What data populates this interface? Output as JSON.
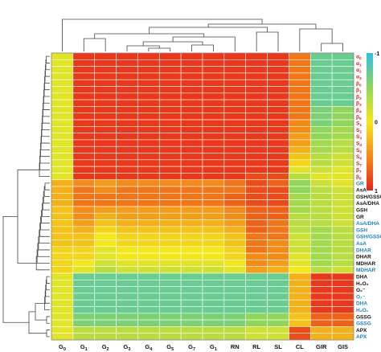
{
  "chart_data": {
    "type": "heatmap",
    "title": "",
    "xlabel": "",
    "ylabel": "",
    "columns": [
      {
        "label": "G",
        "sub": "0"
      },
      {
        "label": "G",
        "sub": "1"
      },
      {
        "label": "G",
        "sub": "2"
      },
      {
        "label": "G",
        "sub": "3"
      },
      {
        "label": "G",
        "sub": "4"
      },
      {
        "label": "G",
        "sub": "5"
      },
      {
        "label": "G",
        "sub": "7"
      },
      {
        "label": "G",
        "sub": "1"
      },
      {
        "label": "RN",
        "sub": ""
      },
      {
        "label": "RL",
        "sub": ""
      },
      {
        "label": "SL",
        "sub": ""
      },
      {
        "label": "CL",
        "sub": ""
      },
      {
        "label": "GIR",
        "sub": ""
      },
      {
        "label": "GIS",
        "sub": ""
      }
    ],
    "rows": [
      {
        "label": "α",
        "sub": "0",
        "color": "#d42020"
      },
      {
        "label": "α",
        "sub": "1",
        "color": "#d42020"
      },
      {
        "label": "α",
        "sub": "2",
        "color": "#d42020"
      },
      {
        "label": "α",
        "sub": "3",
        "color": "#d42020"
      },
      {
        "label": "β",
        "sub": "0",
        "color": "#d42020"
      },
      {
        "label": "β",
        "sub": "1",
        "color": "#d42020"
      },
      {
        "label": "β",
        "sub": "2",
        "color": "#d42020"
      },
      {
        "label": "β",
        "sub": "3",
        "color": "#d42020"
      },
      {
        "label": "β",
        "sub": "4",
        "color": "#d42020"
      },
      {
        "label": "β",
        "sub": "5",
        "color": "#d42020"
      },
      {
        "label": "S",
        "sub": "1",
        "color": "#d42020"
      },
      {
        "label": "S",
        "sub": "2",
        "color": "#d42020"
      },
      {
        "label": "S",
        "sub": "3",
        "color": "#d42020"
      },
      {
        "label": "S",
        "sub": "4",
        "color": "#d42020"
      },
      {
        "label": "S",
        "sub": "5",
        "color": "#d42020"
      },
      {
        "label": "S",
        "sub": "6",
        "color": "#d42020"
      },
      {
        "label": "S",
        "sub": "7",
        "color": "#d42020"
      },
      {
        "label": "β",
        "sub": "7",
        "color": "#d42020"
      },
      {
        "label": "β",
        "sub": "8",
        "color": "#d42020"
      },
      {
        "label": "GR",
        "sub": "",
        "color": "#1a7fc4"
      },
      {
        "label": "AsA",
        "sub": "",
        "color": "#111111"
      },
      {
        "label": "GSH/GSSG",
        "sub": "",
        "color": "#111111"
      },
      {
        "label": "AsA/DHA",
        "sub": "",
        "color": "#111111"
      },
      {
        "label": "GSH",
        "sub": "",
        "color": "#111111"
      },
      {
        "label": "GR",
        "sub": "",
        "color": "#111111"
      },
      {
        "label": "AsA/DHA",
        "sub": "",
        "color": "#1a7fc4"
      },
      {
        "label": "GSH",
        "sub": "",
        "color": "#1a7fc4"
      },
      {
        "label": "GSH/GSSG",
        "sub": "",
        "color": "#1a7fc4"
      },
      {
        "label": "AsA",
        "sub": "",
        "color": "#1a7fc4"
      },
      {
        "label": "DHAR",
        "sub": "",
        "color": "#1a7fc4"
      },
      {
        "label": "DHAR",
        "sub": "",
        "color": "#111111"
      },
      {
        "label": "MDHAR",
        "sub": "",
        "color": "#111111"
      },
      {
        "label": "MDHAR",
        "sub": "",
        "color": "#1a7fc4"
      },
      {
        "label": "DHA",
        "sub": "",
        "color": "#111111"
      },
      {
        "label": "H₂O₂",
        "sub": "",
        "color": "#111111"
      },
      {
        "label": "O₂⁻",
        "sub": "",
        "color": "#111111"
      },
      {
        "label": "O₂⁻",
        "sub": "",
        "color": "#1a7fc4"
      },
      {
        "label": "DHA",
        "sub": "",
        "color": "#1a7fc4"
      },
      {
        "label": "H₂O₂",
        "sub": "",
        "color": "#1a7fc4"
      },
      {
        "label": "GSSG",
        "sub": "",
        "color": "#111111"
      },
      {
        "label": "GSSG",
        "sub": "",
        "color": "#1a7fc4"
      },
      {
        "label": "APX",
        "sub": "",
        "color": "#111111"
      },
      {
        "label": "APX",
        "sub": "",
        "color": "#1a7fc4"
      }
    ],
    "values": [
      [
        -0.1,
        0.9,
        0.9,
        0.9,
        0.9,
        0.9,
        0.9,
        0.9,
        0.9,
        0.9,
        0.9,
        0.6,
        -0.7,
        -0.7
      ],
      [
        -0.1,
        0.9,
        0.9,
        0.9,
        0.9,
        0.9,
        0.9,
        0.9,
        0.9,
        0.9,
        0.9,
        0.6,
        -0.7,
        -0.7
      ],
      [
        -0.1,
        0.9,
        0.9,
        0.9,
        0.9,
        0.9,
        0.9,
        0.9,
        0.9,
        0.9,
        0.9,
        0.6,
        -0.7,
        -0.7
      ],
      [
        -0.1,
        0.9,
        0.9,
        0.9,
        0.9,
        0.9,
        0.9,
        0.9,
        0.9,
        0.9,
        0.9,
        0.6,
        -0.7,
        -0.7
      ],
      [
        -0.1,
        0.9,
        0.9,
        0.9,
        0.9,
        0.9,
        0.9,
        0.9,
        0.9,
        0.9,
        0.9,
        0.6,
        -0.7,
        -0.7
      ],
      [
        -0.1,
        0.9,
        0.9,
        0.9,
        0.9,
        0.9,
        0.9,
        0.9,
        0.9,
        0.9,
        0.9,
        0.6,
        -0.7,
        -0.7
      ],
      [
        -0.1,
        0.9,
        0.9,
        0.9,
        0.9,
        0.9,
        0.9,
        0.9,
        0.9,
        0.9,
        0.9,
        0.6,
        -0.7,
        -0.7
      ],
      [
        -0.1,
        0.9,
        0.9,
        0.9,
        0.9,
        0.9,
        0.9,
        0.9,
        0.9,
        0.9,
        0.9,
        0.6,
        -0.7,
        -0.7
      ],
      [
        -0.1,
        0.9,
        0.9,
        0.9,
        0.9,
        0.9,
        0.9,
        0.9,
        0.9,
        0.9,
        0.9,
        0.6,
        -0.6,
        -0.5
      ],
      [
        -0.1,
        0.9,
        0.9,
        0.9,
        0.9,
        0.9,
        0.9,
        0.9,
        0.9,
        0.9,
        0.9,
        0.6,
        -0.6,
        -0.5
      ],
      [
        -0.1,
        0.9,
        0.9,
        0.9,
        0.9,
        0.9,
        0.9,
        0.9,
        0.9,
        0.9,
        0.9,
        0.5,
        -0.6,
        -0.5
      ],
      [
        -0.1,
        0.9,
        0.9,
        0.9,
        0.9,
        0.9,
        0.9,
        0.9,
        0.9,
        0.9,
        0.9,
        0.5,
        -0.5,
        -0.4
      ],
      [
        -0.1,
        0.9,
        0.9,
        0.9,
        0.9,
        0.9,
        0.9,
        0.9,
        0.9,
        0.9,
        0.9,
        0.4,
        -0.5,
        -0.4
      ],
      [
        -0.1,
        0.9,
        0.9,
        0.9,
        0.9,
        0.9,
        0.9,
        0.9,
        0.9,
        0.9,
        0.9,
        0.4,
        -0.4,
        -0.3
      ],
      [
        -0.1,
        0.9,
        0.9,
        0.9,
        0.9,
        0.9,
        0.9,
        0.9,
        0.9,
        0.9,
        0.9,
        0.3,
        -0.4,
        -0.3
      ],
      [
        -0.1,
        0.9,
        0.9,
        0.9,
        0.9,
        0.9,
        0.9,
        0.9,
        0.9,
        0.9,
        0.9,
        0.2,
        -0.3,
        -0.2
      ],
      [
        -0.1,
        0.9,
        0.9,
        0.9,
        0.9,
        0.9,
        0.9,
        0.9,
        0.9,
        0.9,
        0.9,
        0.1,
        -0.3,
        -0.2
      ],
      [
        -0.1,
        0.9,
        0.9,
        0.9,
        0.9,
        0.9,
        0.9,
        0.9,
        0.9,
        0.9,
        0.9,
        -0.1,
        -0.2,
        -0.1
      ],
      [
        -0.1,
        0.9,
        0.9,
        0.9,
        0.9,
        0.9,
        0.9,
        0.9,
        0.9,
        0.8,
        0.8,
        -0.3,
        -0.1,
        -0.1
      ],
      [
        0.3,
        0.5,
        0.4,
        0.5,
        0.5,
        0.5,
        0.5,
        0.5,
        0.6,
        0.8,
        0.7,
        -0.5,
        -0.2,
        -0.1
      ],
      [
        0.3,
        0.6,
        0.5,
        0.6,
        0.6,
        0.6,
        0.6,
        0.6,
        0.6,
        0.8,
        0.8,
        -0.5,
        -0.3,
        -0.2
      ],
      [
        0.3,
        0.6,
        0.6,
        0.6,
        0.6,
        0.6,
        0.6,
        0.6,
        0.7,
        0.8,
        0.8,
        -0.4,
        -0.3,
        -0.2
      ],
      [
        0.3,
        0.6,
        0.6,
        0.6,
        0.6,
        0.6,
        0.6,
        0.6,
        0.7,
        0.8,
        0.8,
        -0.4,
        -0.3,
        -0.2
      ],
      [
        0.2,
        0.5,
        0.4,
        0.4,
        0.4,
        0.4,
        0.4,
        0.4,
        0.5,
        0.7,
        0.7,
        -0.4,
        -0.3,
        -0.2
      ],
      [
        0.2,
        0.5,
        0.3,
        0.4,
        0.4,
        0.4,
        0.4,
        0.4,
        0.5,
        0.7,
        0.7,
        -0.3,
        -0.3,
        -0.2
      ],
      [
        0.2,
        0.4,
        0.2,
        0.3,
        0.3,
        0.3,
        0.3,
        0.3,
        0.4,
        0.7,
        0.6,
        -0.3,
        -0.3,
        -0.2
      ],
      [
        0.2,
        0.3,
        0.1,
        0.2,
        0.2,
        0.2,
        0.2,
        0.2,
        0.3,
        0.7,
        0.6,
        -0.3,
        -0.4,
        -0.3
      ],
      [
        0.2,
        0.2,
        0.0,
        0.1,
        0.1,
        0.1,
        0.1,
        0.1,
        0.2,
        0.6,
        0.6,
        -0.2,
        -0.4,
        -0.3
      ],
      [
        0.2,
        0.2,
        0.0,
        0.1,
        0.1,
        0.1,
        0.1,
        0.1,
        0.2,
        0.6,
        0.5,
        -0.2,
        -0.4,
        -0.3
      ],
      [
        0.1,
        0.1,
        -0.1,
        0.0,
        0.0,
        0.0,
        0.0,
        0.0,
        0.1,
        0.6,
        0.5,
        -0.2,
        -0.4,
        -0.3
      ],
      [
        0.1,
        0.1,
        -0.1,
        0.0,
        0.0,
        0.0,
        0.0,
        0.0,
        0.1,
        0.5,
        0.5,
        -0.1,
        -0.4,
        -0.3
      ],
      [
        0.1,
        0.0,
        -0.2,
        -0.1,
        -0.1,
        -0.1,
        -0.1,
        -0.1,
        0.0,
        0.5,
        0.4,
        -0.1,
        -0.4,
        -0.3
      ],
      [
        0.1,
        -0.1,
        -0.3,
        -0.2,
        -0.2,
        -0.2,
        -0.2,
        -0.2,
        -0.1,
        0.4,
        0.3,
        0.0,
        -0.3,
        -0.2
      ],
      [
        -0.1,
        -0.7,
        -0.7,
        -0.7,
        -0.7,
        -0.7,
        -0.7,
        -0.7,
        -0.7,
        -0.7,
        -0.7,
        0.3,
        0.9,
        0.9
      ],
      [
        -0.1,
        -0.7,
        -0.7,
        -0.7,
        -0.7,
        -0.7,
        -0.7,
        -0.7,
        -0.7,
        -0.7,
        -0.7,
        0.3,
        0.9,
        0.9
      ],
      [
        -0.1,
        -0.7,
        -0.7,
        -0.7,
        -0.7,
        -0.7,
        -0.7,
        -0.7,
        -0.7,
        -0.7,
        -0.7,
        0.3,
        0.9,
        0.9
      ],
      [
        -0.1,
        -0.7,
        -0.7,
        -0.7,
        -0.7,
        -0.7,
        -0.7,
        -0.7,
        -0.7,
        -0.7,
        -0.7,
        0.3,
        0.9,
        0.9
      ],
      [
        -0.1,
        -0.7,
        -0.7,
        -0.7,
        -0.7,
        -0.7,
        -0.7,
        -0.7,
        -0.7,
        -0.7,
        -0.7,
        0.3,
        0.9,
        0.9
      ],
      [
        -0.1,
        -0.7,
        -0.7,
        -0.7,
        -0.7,
        -0.7,
        -0.7,
        -0.7,
        -0.7,
        -0.7,
        -0.7,
        0.3,
        0.9,
        0.9
      ],
      [
        -0.1,
        -0.6,
        -0.6,
        -0.6,
        -0.6,
        -0.6,
        -0.6,
        -0.6,
        -0.6,
        -0.5,
        -0.5,
        0.2,
        0.7,
        0.7
      ],
      [
        -0.1,
        -0.6,
        -0.6,
        -0.6,
        -0.6,
        -0.6,
        -0.6,
        -0.6,
        -0.6,
        -0.5,
        -0.5,
        0.2,
        0.7,
        0.7
      ],
      [
        -0.1,
        -0.3,
        -0.3,
        -0.3,
        -0.3,
        -0.3,
        -0.3,
        -0.3,
        -0.3,
        -0.2,
        -0.2,
        0.8,
        0.3,
        0.3
      ],
      [
        -0.1,
        -0.3,
        -0.3,
        -0.3,
        -0.3,
        -0.3,
        -0.3,
        -0.3,
        -0.3,
        -0.2,
        -0.2,
        0.8,
        0.3,
        0.3
      ]
    ],
    "color_range": [
      -1,
      1
    ],
    "colorbar_ticks": [
      "-1",
      "0",
      "1"
    ],
    "colormap": [
      "#2fbfe6",
      "#8fd65a",
      "#f5e81a",
      "#f58a16",
      "#e8231b"
    ],
    "grid": true,
    "legend_position": "right",
    "dendrograms": [
      "top",
      "left"
    ]
  }
}
